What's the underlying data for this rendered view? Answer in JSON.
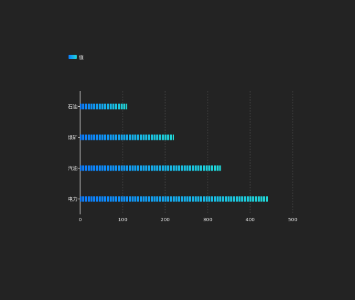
{
  "chart_data": {
    "type": "bar",
    "orientation": "horizontal",
    "categories": [
      "电力",
      "汽油",
      "煤矿",
      "石油"
    ],
    "series": [
      {
        "name": "值",
        "values": [
          443,
          331,
          221,
          110
        ]
      }
    ],
    "xlim": [
      0,
      500
    ],
    "x_ticks": [
      0,
      100,
      200,
      300,
      400,
      500
    ],
    "grid": "vertical-dashed",
    "legend_position": "top-left",
    "colors": {
      "bar_start": "#0a7cff",
      "bar_end": "#1fd6d6",
      "legend_start": "#0a7cff",
      "legend_end": "#1fd6d6",
      "grid": "#555555",
      "axis": "#dddddd",
      "text": "#e8e8e8",
      "background": "#232323"
    }
  }
}
